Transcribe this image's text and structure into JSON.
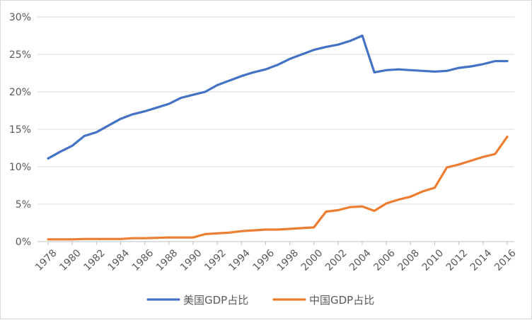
{
  "chart_data": {
    "type": "line",
    "title": "",
    "xlabel": "",
    "ylabel": "",
    "ylim": [
      0,
      30
    ],
    "y_ticks": [
      "0%",
      "5%",
      "10%",
      "15%",
      "20%",
      "25%",
      "30%"
    ],
    "x_ticks": [
      "1978",
      "1980",
      "1982",
      "1984",
      "1986",
      "1988",
      "1990",
      "1992",
      "1994",
      "1996",
      "1998",
      "2000",
      "2002",
      "2004",
      "2006",
      "2008",
      "2010",
      "2012",
      "2014",
      "2016"
    ],
    "x": [
      1978,
      1979,
      1980,
      1981,
      1982,
      1983,
      1984,
      1985,
      1986,
      1987,
      1988,
      1989,
      1990,
      1991,
      1992,
      1993,
      1994,
      1995,
      1996,
      1997,
      1998,
      1999,
      2000,
      2001,
      2002,
      2003,
      2004,
      2005,
      2006,
      2007,
      2008,
      2009,
      2010,
      2011,
      2012,
      2013,
      2014,
      2015,
      2016
    ],
    "series": [
      {
        "name": "美国GDP占比",
        "color": "#4472C4",
        "values": [
          11.1,
          12.0,
          12.8,
          14.1,
          14.6,
          15.5,
          16.4,
          17.0,
          17.4,
          17.9,
          18.4,
          19.2,
          19.6,
          20.0,
          20.9,
          21.5,
          22.1,
          22.6,
          23.0,
          23.6,
          24.4,
          25.0,
          25.6,
          26.0,
          26.3,
          26.8,
          27.5,
          22.6,
          22.9,
          23.0,
          22.9,
          22.8,
          22.7,
          22.8,
          23.2,
          23.4,
          23.7,
          24.1,
          24.1
        ]
      },
      {
        "name": "中国GDP占比",
        "color": "#ED7D31",
        "values": [
          0.3,
          0.3,
          0.3,
          0.35,
          0.35,
          0.35,
          0.35,
          0.45,
          0.45,
          0.5,
          0.55,
          0.55,
          0.55,
          1.0,
          1.1,
          1.2,
          1.4,
          1.5,
          1.6,
          1.6,
          1.7,
          1.8,
          1.9,
          4.0,
          4.2,
          4.6,
          4.7,
          4.1,
          5.1,
          5.6,
          6.0,
          6.7,
          7.2,
          9.9,
          10.3,
          10.8,
          11.3,
          11.7,
          14.0
        ]
      }
    ],
    "grid": "horizontal",
    "legend_position": "bottom"
  }
}
